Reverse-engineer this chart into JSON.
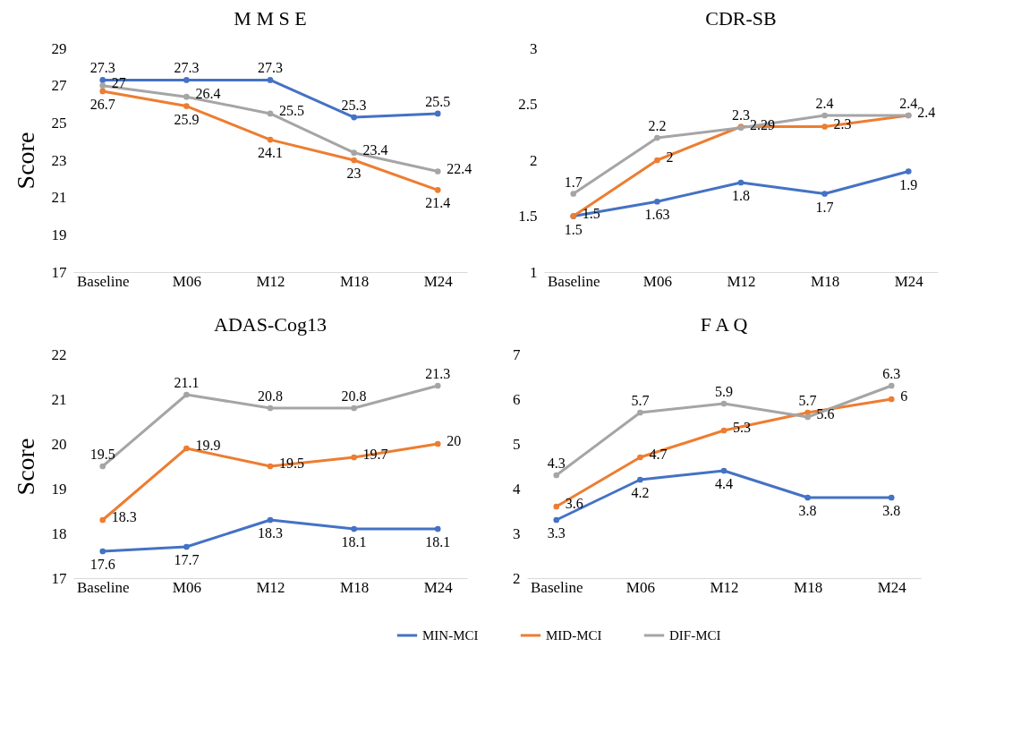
{
  "chart_data": [
    {
      "type": "line",
      "title": "M M S E",
      "ylabel": "Score",
      "categories": [
        "Baseline",
        "M06",
        "M12",
        "M18",
        "M24"
      ],
      "ylim": [
        17,
        29
      ],
      "yticks": [
        17,
        19,
        21,
        23,
        25,
        27,
        29
      ],
      "marker": "circle",
      "data_labels": true,
      "legend": "bottom",
      "series": [
        {
          "name": "MIN-MCI",
          "color": "#4472c4",
          "values": [
            27.3,
            27.3,
            27.3,
            25.3,
            25.5
          ]
        },
        {
          "name": "MID-MCI",
          "color": "#ed7d31",
          "values": [
            26.7,
            25.9,
            24.1,
            23,
            21.4
          ]
        },
        {
          "name": "DIF-MCI",
          "color": "#a5a5a5",
          "values": [
            27,
            26.4,
            25.5,
            23.4,
            22.4
          ]
        }
      ]
    },
    {
      "type": "line",
      "title": "CDR-SB",
      "categories": [
        "Baseline",
        "M06",
        "M12",
        "M18",
        "M24"
      ],
      "ylim": [
        1,
        3
      ],
      "yticks": [
        1,
        1.5,
        2,
        2.5,
        3
      ],
      "marker": "circle",
      "data_labels": true,
      "legend": "bottom",
      "series": [
        {
          "name": "MIN-MCI",
          "color": "#4472c4",
          "values": [
            1.5,
            1.63,
            1.8,
            1.7,
            1.9
          ]
        },
        {
          "name": "MID-MCI",
          "color": "#ed7d31",
          "values": [
            1.5,
            2,
            2.3,
            2.3,
            2.4
          ]
        },
        {
          "name": "DIF-MCI",
          "color": "#a5a5a5",
          "values": [
            1.7,
            2.2,
            2.29,
            2.4,
            2.4
          ]
        }
      ]
    },
    {
      "type": "line",
      "title": "ADAS-Cog13",
      "ylabel": "Score",
      "categories": [
        "Baseline",
        "M06",
        "M12",
        "M18",
        "M24"
      ],
      "ylim": [
        17,
        22
      ],
      "yticks": [
        17,
        18,
        19,
        20,
        21,
        22
      ],
      "marker": "circle",
      "data_labels": true,
      "legend": "bottom",
      "series": [
        {
          "name": "MIN-MCI",
          "color": "#4472c4",
          "values": [
            17.6,
            17.7,
            18.3,
            18.1,
            18.1
          ]
        },
        {
          "name": "MID-MCI",
          "color": "#ed7d31",
          "values": [
            18.3,
            19.9,
            19.5,
            19.7,
            20
          ]
        },
        {
          "name": "DIF-MCI",
          "color": "#a5a5a5",
          "values": [
            19.5,
            21.1,
            20.8,
            20.8,
            21.3
          ]
        }
      ]
    },
    {
      "type": "line",
      "title": "F A Q",
      "categories": [
        "Baseline",
        "M06",
        "M12",
        "M18",
        "M24"
      ],
      "ylim": [
        2,
        7
      ],
      "yticks": [
        2,
        3,
        4,
        5,
        6,
        7
      ],
      "marker": "circle",
      "data_labels": true,
      "legend": "bottom",
      "series": [
        {
          "name": "MIN-MCI",
          "color": "#4472c4",
          "values": [
            3.3,
            4.2,
            4.4,
            3.8,
            3.8
          ]
        },
        {
          "name": "MID-MCI",
          "color": "#ed7d31",
          "values": [
            3.6,
            4.7,
            5.3,
            5.7,
            6
          ]
        },
        {
          "name": "DIF-MCI",
          "color": "#a5a5a5",
          "values": [
            4.3,
            5.7,
            5.9,
            5.6,
            6.3
          ]
        }
      ]
    }
  ]
}
